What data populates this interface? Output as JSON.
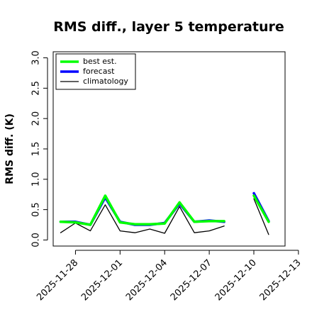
{
  "chart_data": {
    "type": "line",
    "title": "RMS diff., layer 5 temperature",
    "xlabel": "",
    "ylabel": "RMS diff. (K)",
    "ylim": [
      -0.1,
      3.1
    ],
    "yticks": [
      0.0,
      0.5,
      1.0,
      1.5,
      2.0,
      2.5,
      3.0
    ],
    "ytick_labels": [
      "0.0",
      "0.5",
      "1.0",
      "1.5",
      "2.0",
      "2.5",
      "3.0"
    ],
    "xlim": [
      0,
      15.6
    ],
    "xticks": [
      {
        "x": 1.5,
        "label": "2025-11-28",
        "color": "#000000"
      },
      {
        "x": 4.5,
        "label": "2025-12-01",
        "color": "#000000"
      },
      {
        "x": 7.5,
        "label": "2025-12-04",
        "color": "#228B22"
      },
      {
        "x": 10.5,
        "label": "2025-12-07",
        "color": "#000000"
      },
      {
        "x": 13.5,
        "label": "2025-12-10",
        "color": "#000000"
      },
      {
        "x": 16.5,
        "label": "2025-12-13",
        "color": "#000000"
      }
    ],
    "legend_position": "top-left",
    "series": [
      {
        "name": "forecast",
        "color": "#0000ff",
        "x": [
          0.5,
          1.5,
          2.5,
          3.5,
          4.5,
          5.5,
          6.5,
          7.5,
          8.5,
          9.5,
          10.5,
          11.5,
          12.5,
          13.5,
          14.5,
          15.5
        ],
        "y": [
          0.3,
          0.3,
          0.25,
          0.7,
          0.3,
          0.25,
          0.25,
          0.28,
          0.6,
          0.3,
          0.32,
          0.3,
          null,
          0.77,
          0.31,
          null
        ]
      },
      {
        "name": "best est.",
        "color": "#00ff00",
        "x": [
          0.5,
          1.5,
          2.5,
          3.5,
          4.5,
          5.5,
          6.5,
          7.5,
          8.5,
          9.5,
          10.5,
          11.5,
          12.5,
          13.5,
          14.5,
          15.5
        ],
        "y": [
          0.3,
          0.29,
          0.25,
          0.73,
          0.29,
          0.26,
          0.26,
          0.27,
          0.62,
          0.3,
          0.31,
          0.31,
          null,
          0.73,
          0.3,
          null
        ]
      },
      {
        "name": "climatology",
        "color": "#000000",
        "x": [
          0.5,
          1.5,
          2.5,
          3.5,
          4.5,
          5.5,
          6.5,
          7.5,
          8.5,
          9.5,
          10.5,
          11.5,
          12.5,
          13.5,
          14.5,
          15.5
        ],
        "y": [
          0.12,
          0.28,
          0.15,
          0.58,
          0.15,
          0.12,
          0.18,
          0.11,
          0.55,
          0.12,
          0.15,
          0.23,
          null,
          0.68,
          0.09,
          null
        ]
      }
    ],
    "legend_order": [
      "best est.",
      "forecast",
      "climatology"
    ]
  }
}
